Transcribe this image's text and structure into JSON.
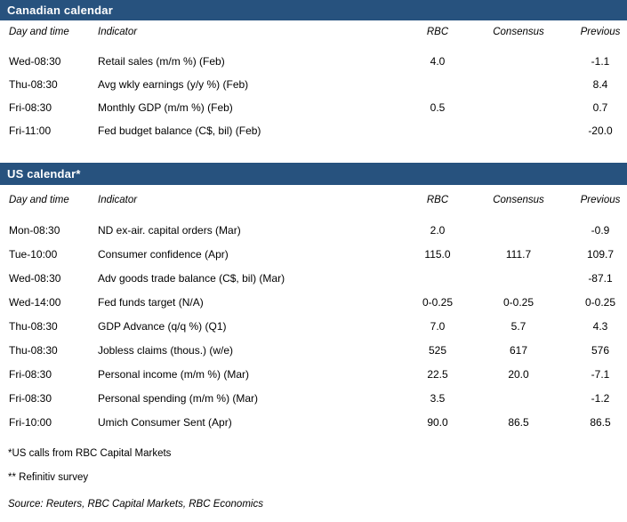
{
  "colors": {
    "section_bar": "#27527e",
    "section_bar_text": "#ffffff",
    "body_text": "#000000"
  },
  "columns": {
    "day": "Day and time",
    "indicator": "Indicator",
    "rbc": "RBC",
    "consensus": "Consensus",
    "previous": "Previous"
  },
  "sections": [
    {
      "title": "Canadian calendar",
      "rows": [
        {
          "day": "Wed-08:30",
          "indicator": "Retail sales (m/m %) (Feb)",
          "rbc": "4.0",
          "consensus": "",
          "previous": "-1.1"
        },
        {
          "day": "Thu-08:30",
          "indicator": "Avg wkly earnings (y/y %) (Feb)",
          "rbc": "",
          "consensus": "",
          "previous": "8.4"
        },
        {
          "day": "Fri-08:30",
          "indicator": "Monthly GDP (m/m %) (Feb)",
          "rbc": "0.5",
          "consensus": "",
          "previous": "0.7"
        },
        {
          "day": "Fri-11:00",
          "indicator": "Fed budget balance (C$, bil) (Feb)",
          "rbc": "",
          "consensus": "",
          "previous": "-20.0"
        }
      ]
    },
    {
      "title": "US calendar*",
      "rows": [
        {
          "day": "Mon-08:30",
          "indicator": "ND ex-air. capital orders (Mar)",
          "rbc": "2.0",
          "consensus": "",
          "previous": "-0.9"
        },
        {
          "day": "Tue-10:00",
          "indicator": "Consumer confidence (Apr)",
          "rbc": "115.0",
          "consensus": "111.7",
          "previous": "109.7"
        },
        {
          "day": "Wed-08:30",
          "indicator": "Adv goods trade balance (C$, bil) (Mar)",
          "rbc": "",
          "consensus": "",
          "previous": "-87.1"
        },
        {
          "day": "Wed-14:00",
          "indicator": "Fed funds target (N/A)",
          "rbc": "0-0.25",
          "consensus": "0-0.25",
          "previous": "0-0.25"
        },
        {
          "day": "Thu-08:30",
          "indicator": "GDP Advance (q/q %) (Q1)",
          "rbc": "7.0",
          "consensus": "5.7",
          "previous": "4.3"
        },
        {
          "day": "Thu-08:30",
          "indicator": "Jobless claims (thous.) (w/e)",
          "rbc": "525",
          "consensus": "617",
          "previous": "576"
        },
        {
          "day": "Fri-08:30",
          "indicator": "Personal income (m/m %) (Mar)",
          "rbc": "22.5",
          "consensus": "20.0",
          "previous": "-7.1"
        },
        {
          "day": "Fri-08:30",
          "indicator": "Personal spending (m/m %) (Mar)",
          "rbc": "3.5",
          "consensus": "",
          "previous": "-1.2"
        },
        {
          "day": "Fri-10:00",
          "indicator": "Umich Consumer Sent (Apr)",
          "rbc": "90.0",
          "consensus": "86.5",
          "previous": "86.5"
        }
      ]
    }
  ],
  "footnotes": [
    "*US calls from RBC Capital Markets",
    "** Refinitiv survey"
  ],
  "source": "Source: Reuters, RBC Capital Markets, RBC Economics"
}
